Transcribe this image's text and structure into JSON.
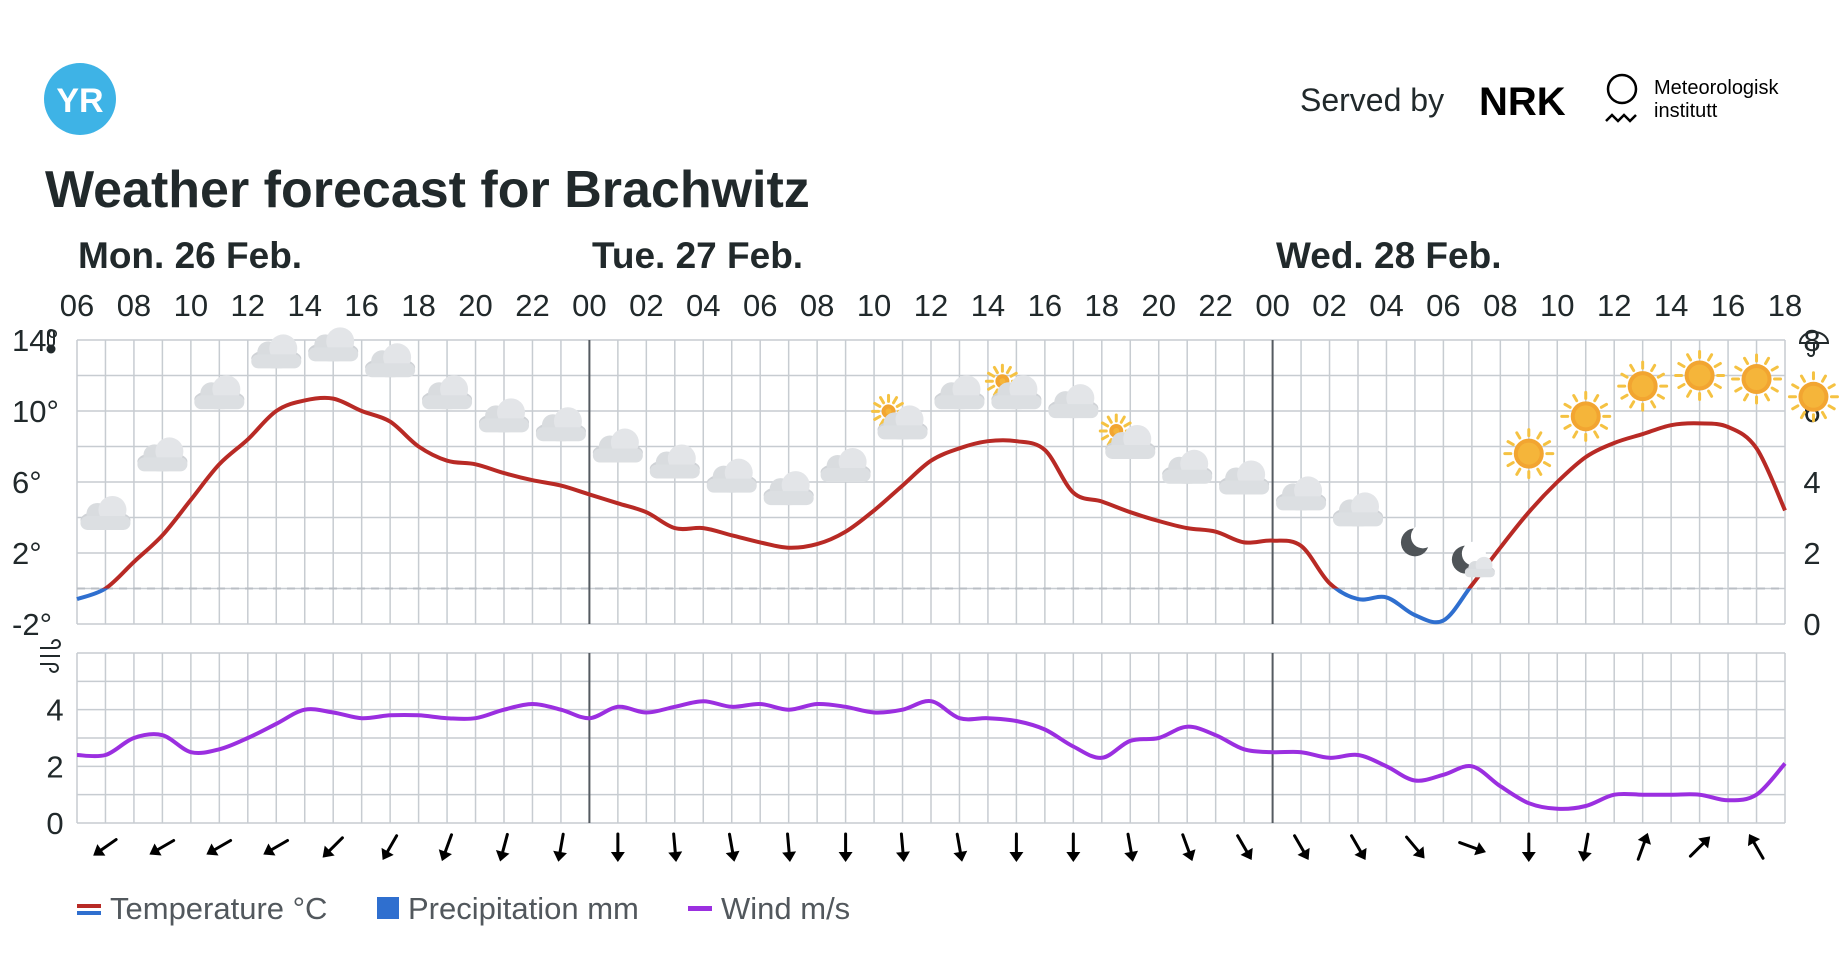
{
  "logo_text": "YR",
  "served_by_label": "Served by",
  "nrk_logo_text": "NRK",
  "met_logo_text": [
    "Meteorologisk",
    "institutt"
  ],
  "page_title": "Weather forecast for Brachwitz",
  "day_labels": [
    "Mon. 26 Feb.",
    "Tue. 27 Feb.",
    "Wed. 28 Feb."
  ],
  "hour_ticks": [
    "06",
    "08",
    "10",
    "12",
    "14",
    "16",
    "18",
    "20",
    "22",
    "00",
    "02",
    "04",
    "06",
    "08",
    "10",
    "12",
    "14",
    "16",
    "18",
    "20",
    "22",
    "00",
    "02",
    "04",
    "06",
    "08",
    "10",
    "12",
    "14",
    "16",
    "18"
  ],
  "temp_axis_ticks": [
    "14°",
    "10°",
    "6°",
    "2°",
    "-2°"
  ],
  "precip_axis_ticks": [
    "8",
    "6",
    "4",
    "2",
    "0"
  ],
  "wind_axis_ticks": [
    "4",
    "2",
    "0"
  ],
  "legend": [
    "Temperature °C",
    "Precipitation mm",
    "Wind m/s"
  ],
  "colors": {
    "temp_warm": "#b82a25",
    "temp_cold": "#2f6fcf",
    "precip": "#2f6fcf",
    "wind": "#9b2fe0",
    "grid": "#c7ccd1",
    "logo": "#3eb3e6"
  },
  "chart_data": [
    {
      "type": "line",
      "series": [
        {
          "name": "Temperature °C",
          "x_hours": [
            6,
            7,
            8,
            9,
            10,
            11,
            12,
            13,
            14,
            15,
            16,
            17,
            18,
            19,
            20,
            21,
            22,
            23,
            24,
            25,
            26,
            27,
            28,
            29,
            30,
            31,
            32,
            33,
            34,
            35,
            36,
            37,
            38,
            39,
            40,
            41,
            42,
            43,
            44,
            45,
            46,
            47,
            48,
            49,
            50,
            51,
            52,
            53,
            54,
            55,
            56,
            57,
            58,
            59,
            60,
            61,
            62,
            63,
            64,
            65,
            66
          ],
          "values": [
            -0.6,
            0,
            1.5,
            3,
            5,
            7,
            8.4,
            10,
            10.6,
            10.7,
            10,
            9.4,
            8,
            7.2,
            7,
            6.5,
            6.1,
            5.8,
            5.3,
            4.8,
            4.3,
            3.4,
            3.4,
            3.0,
            2.6,
            2.3,
            2.5,
            3.2,
            4.4,
            5.8,
            7.2,
            7.9,
            8.3,
            8.3,
            7.8,
            5.4,
            4.9,
            4.3,
            3.8,
            3.4,
            3.2,
            2.6,
            2.7,
            2.4,
            0.3,
            -0.6,
            -0.5,
            -1.5,
            -1.8,
            0.2,
            2.3,
            4.3,
            6,
            7.4,
            8.2,
            8.7,
            9.2,
            9.3,
            9.1,
            7.9,
            4.4
          ]
        }
      ],
      "ylim": [
        -2,
        14
      ],
      "precipitation_mm": [],
      "precip_axis_range": [
        0,
        8
      ],
      "weather_symbols": [
        "cloudy",
        "cloudy",
        "cloudy",
        "cloudy",
        "cloudy",
        "cloudy",
        "cloudy",
        "cloudy",
        "cloudy",
        "cloudy",
        "cloudy",
        "cloudy",
        "cloudy",
        "cloudy",
        "partly-cloudy",
        "cloudy",
        "partly-cloudy",
        "cloudy",
        "partly-cloudy",
        "cloudy",
        "cloudy",
        "cloudy",
        "cloudy",
        "clear-night",
        "partly-cloudy-night",
        "clear-sky",
        "clear-sky",
        "clear-sky",
        "clear-sky",
        "clear-sky",
        "clear-sky"
      ],
      "weather_symbol_temps": [
        4.2,
        7.5,
        11,
        13.3,
        13.7,
        12.8,
        11,
        9.7,
        9.2,
        8,
        7.1,
        6.3,
        5.6,
        6.9,
        9.3,
        11,
        11,
        10.5,
        8.2,
        6.8,
        6.2,
        5.3,
        4.4,
        2.6,
        1.4,
        7.6,
        9.7,
        11.4,
        12,
        11.8,
        10.8
      ]
    },
    {
      "type": "line",
      "series": [
        {
          "name": "Wind m/s",
          "x_hours": [
            6,
            7,
            8,
            9,
            10,
            11,
            12,
            13,
            14,
            15,
            16,
            17,
            18,
            19,
            20,
            21,
            22,
            23,
            24,
            25,
            26,
            27,
            28,
            29,
            30,
            31,
            32,
            33,
            34,
            35,
            36,
            37,
            38,
            39,
            40,
            41,
            42,
            43,
            44,
            45,
            46,
            47,
            48,
            49,
            50,
            51,
            52,
            53,
            54,
            55,
            56,
            57,
            58,
            59,
            60,
            61,
            62,
            63,
            64,
            65,
            66
          ],
          "values": [
            2.4,
            2.4,
            3.0,
            3.1,
            2.5,
            2.6,
            3.0,
            3.5,
            4.0,
            3.9,
            3.7,
            3.8,
            3.8,
            3.7,
            3.7,
            4.0,
            4.2,
            4.0,
            3.7,
            4.1,
            3.9,
            4.1,
            4.3,
            4.1,
            4.2,
            4.0,
            4.2,
            4.1,
            3.9,
            4.0,
            4.3,
            3.7,
            3.7,
            3.6,
            3.3,
            2.7,
            2.3,
            2.9,
            3.0,
            3.4,
            3.1,
            2.6,
            2.5,
            2.5,
            2.3,
            2.4,
            2.0,
            1.5,
            1.7,
            2.0,
            1.3,
            0.7,
            0.5,
            0.6,
            1.0,
            1.0,
            1.0,
            1.0,
            0.8,
            1.0,
            2.1
          ]
        }
      ],
      "ylim": [
        0,
        6
      ],
      "wind_direction_arrows_deg": [
        235,
        240,
        240,
        240,
        225,
        210,
        200,
        195,
        190,
        180,
        175,
        170,
        175,
        180,
        175,
        170,
        180,
        180,
        170,
        160,
        150,
        150,
        150,
        140,
        110,
        180,
        190,
        20,
        45,
        330
      ]
    }
  ]
}
